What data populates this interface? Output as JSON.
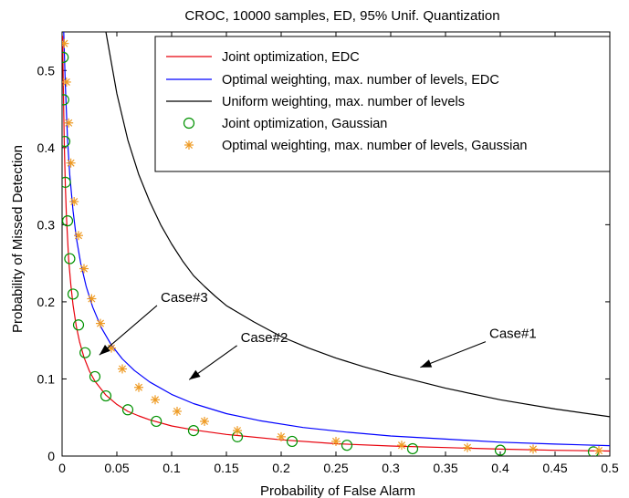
{
  "chart_data": {
    "type": "line",
    "title": "CROC, 10000 samples, ED, 95% Unif. Quantization",
    "xlabel": "Probability of False Alarm",
    "ylabel": "Probability of Missed Detection",
    "xlim": [
      0,
      0.5
    ],
    "ylim": [
      0,
      0.55
    ],
    "xticks": [
      0,
      0.05,
      0.1,
      0.15,
      0.2,
      0.25,
      0.3,
      0.35,
      0.4,
      0.45,
      0.5
    ],
    "xtick_labels": [
      "0",
      "0.05",
      "0.1",
      "0.15",
      "0.2",
      "0.25",
      "0.3",
      "0.35",
      "0.4",
      "0.45",
      "0.5"
    ],
    "yticks": [
      0,
      0.1,
      0.2,
      0.3,
      0.4,
      0.5
    ],
    "ytick_labels": [
      "0",
      "0.1",
      "0.2",
      "0.3",
      "0.4",
      "0.5"
    ],
    "grid": false,
    "legend_position": "top-right",
    "series": [
      {
        "name": "Joint optimization, EDC",
        "kind": "line",
        "color": "#e8000b",
        "x": [
          0.0005,
          0.001,
          0.002,
          0.003,
          0.004,
          0.006,
          0.008,
          0.01,
          0.013,
          0.016,
          0.02,
          0.025,
          0.03,
          0.04,
          0.05,
          0.06,
          0.07,
          0.08,
          0.1,
          0.12,
          0.15,
          0.2,
          0.25,
          0.3,
          0.35,
          0.4,
          0.45,
          0.5
        ],
        "y": [
          0.545,
          0.49,
          0.405,
          0.35,
          0.31,
          0.255,
          0.222,
          0.196,
          0.168,
          0.148,
          0.128,
          0.11,
          0.097,
          0.079,
          0.067,
          0.058,
          0.052,
          0.047,
          0.039,
          0.034,
          0.028,
          0.021,
          0.016,
          0.013,
          0.011,
          0.009,
          0.0075,
          0.0065
        ]
      },
      {
        "name": "Optimal weighting, max. number of levels, EDC",
        "kind": "line",
        "color": "#0000ff",
        "x": [
          0.0015,
          0.003,
          0.005,
          0.007,
          0.01,
          0.013,
          0.017,
          0.022,
          0.028,
          0.036,
          0.045,
          0.055,
          0.066,
          0.08,
          0.1,
          0.12,
          0.15,
          0.18,
          0.22,
          0.26,
          0.3,
          0.35,
          0.4,
          0.45,
          0.5
        ],
        "y": [
          0.55,
          0.48,
          0.41,
          0.365,
          0.318,
          0.283,
          0.25,
          0.22,
          0.193,
          0.166,
          0.144,
          0.126,
          0.111,
          0.096,
          0.08,
          0.068,
          0.055,
          0.046,
          0.037,
          0.031,
          0.026,
          0.022,
          0.018,
          0.0155,
          0.0135
        ]
      },
      {
        "name": "Uniform weighting, max. number of levels",
        "kind": "line",
        "color": "#000000",
        "x": [
          0.04,
          0.05,
          0.06,
          0.07,
          0.08,
          0.09,
          0.1,
          0.11,
          0.12,
          0.13,
          0.14,
          0.15,
          0.175,
          0.2,
          0.225,
          0.25,
          0.275,
          0.3,
          0.35,
          0.4,
          0.45,
          0.5
        ],
        "y": [
          0.55,
          0.47,
          0.41,
          0.365,
          0.33,
          0.3,
          0.275,
          0.253,
          0.234,
          0.22,
          0.207,
          0.195,
          0.174,
          0.155,
          0.14,
          0.127,
          0.116,
          0.106,
          0.088,
          0.073,
          0.061,
          0.051
        ]
      },
      {
        "name": "Joint optimization, Gaussian",
        "kind": "marker",
        "marker": "circle",
        "color": "#009100",
        "x": [
          0.001,
          0.0015,
          0.0025,
          0.003,
          0.005,
          0.007,
          0.01,
          0.015,
          0.021,
          0.03,
          0.04,
          0.06,
          0.086,
          0.12,
          0.16,
          0.21,
          0.26,
          0.32,
          0.4,
          0.485
        ],
        "y": [
          0.517,
          0.462,
          0.408,
          0.355,
          0.305,
          0.256,
          0.21,
          0.17,
          0.134,
          0.103,
          0.078,
          0.06,
          0.045,
          0.033,
          0.025,
          0.019,
          0.014,
          0.0095,
          0.0075,
          0.0055
        ]
      },
      {
        "name": "Optimal weighting, max. number of levels, Gaussian",
        "kind": "marker",
        "marker": "star",
        "color": "#ee9a22",
        "x": [
          0.002,
          0.004,
          0.006,
          0.008,
          0.011,
          0.015,
          0.02,
          0.027,
          0.035,
          0.045,
          0.055,
          0.07,
          0.085,
          0.105,
          0.13,
          0.16,
          0.2,
          0.25,
          0.31,
          0.37,
          0.43,
          0.49
        ],
        "y": [
          0.535,
          0.485,
          0.432,
          0.38,
          0.33,
          0.286,
          0.243,
          0.204,
          0.172,
          0.14,
          0.113,
          0.089,
          0.073,
          0.058,
          0.045,
          0.033,
          0.025,
          0.019,
          0.014,
          0.011,
          0.009,
          0.007
        ]
      }
    ],
    "annotations": [
      {
        "text": "Case#1",
        "text_x": 0.39,
        "text_y": 0.153,
        "arrow_x": 0.327,
        "arrow_y": 0.115
      },
      {
        "text": "Case#2",
        "text_x": 0.163,
        "text_y": 0.148,
        "arrow_x": 0.116,
        "arrow_y": 0.099
      },
      {
        "text": "Case#3",
        "text_x": 0.09,
        "text_y": 0.2,
        "arrow_x": 0.034,
        "arrow_y": 0.131
      }
    ]
  }
}
